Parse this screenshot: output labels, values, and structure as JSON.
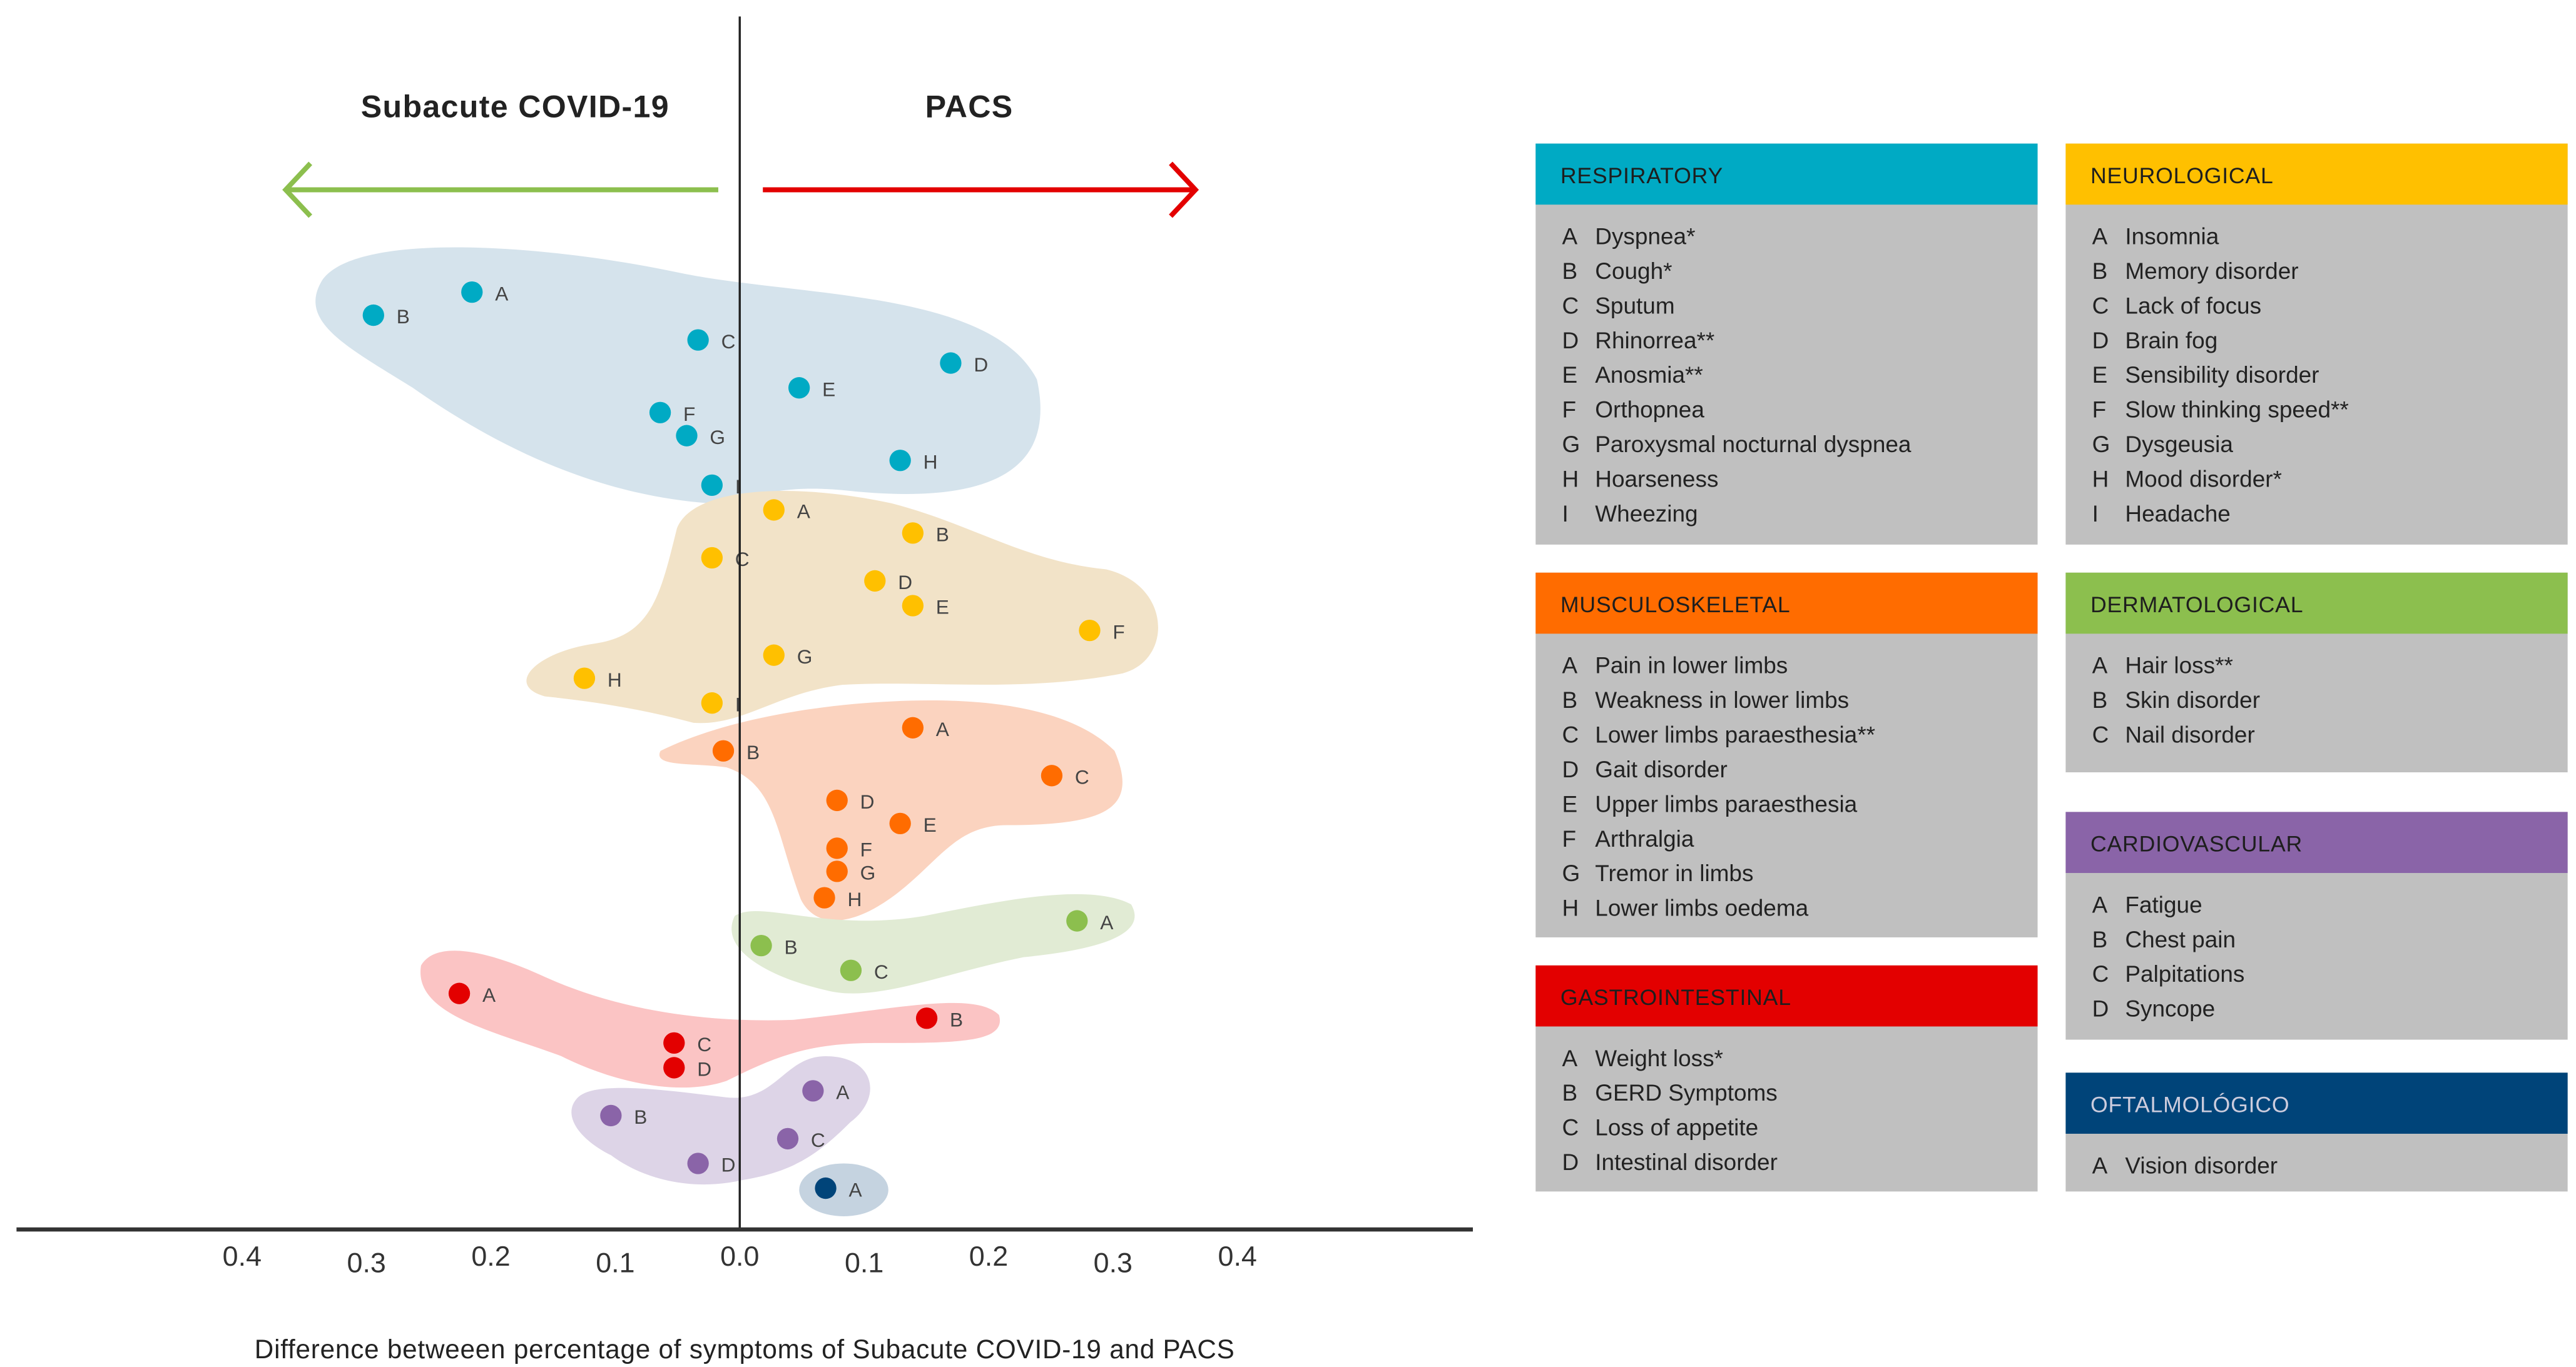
{
  "chart_data": {
    "type": "scatter",
    "title_left": "Subacute COVID-19",
    "title_right": "PACS",
    "xlabel": "Difference betweeen percentage of symptoms of Subacute COVID-19 and PACS",
    "xlim": [
      -0.4,
      0.4
    ],
    "tick_labels": [
      "0.4",
      "0.3",
      "0.2",
      "0.1",
      "0.0",
      "0.1",
      "0.2",
      "0.3",
      "0.4"
    ],
    "tick_values": [
      -0.4,
      -0.3,
      -0.2,
      -0.1,
      0,
      0.1,
      0.2,
      0.3,
      0.4
    ],
    "groups": [
      {
        "name": "RESPIRATORY",
        "color": "#00aac4",
        "fill": "#d5e3ec",
        "points": [
          {
            "label": "A",
            "name": "Dyspnea*",
            "x": -0.212
          },
          {
            "label": "B",
            "name": "Cough*",
            "x": -0.29
          },
          {
            "label": "C",
            "name": "Sputum",
            "x": -0.033
          },
          {
            "label": "D",
            "name": "Rhinorrea**",
            "x": 0.167
          },
          {
            "label": "E",
            "name": "Anosmia**",
            "x": 0.047
          },
          {
            "label": "F",
            "name": "Orthopnea",
            "x": -0.063
          },
          {
            "label": "G",
            "name": "Paroxysmal nocturnal dyspnea",
            "x": -0.042
          },
          {
            "label": "H",
            "name": "Hoarseness",
            "x": 0.127
          },
          {
            "label": "I",
            "name": "Wheezing",
            "x": -0.022
          }
        ]
      },
      {
        "name": "NEUROLOGICAL",
        "color": "#ffc000",
        "fill": "#f2e3c8",
        "points": [
          {
            "label": "A",
            "name": "Insomnia",
            "x": 0.027
          },
          {
            "label": "B",
            "name": "Memory disorder",
            "x": 0.137
          },
          {
            "label": "C",
            "name": "Lack of focus",
            "x": -0.022
          },
          {
            "label": "D",
            "name": "Brain fog",
            "x": 0.107
          },
          {
            "label": "E",
            "name": "Sensibility disorder",
            "x": 0.137
          },
          {
            "label": "F",
            "name": "Slow thinking speed**",
            "x": 0.277
          },
          {
            "label": "G",
            "name": "Dysgeusia",
            "x": 0.027
          },
          {
            "label": "H",
            "name": "Mood disorder*",
            "x": -0.123
          },
          {
            "label": "I",
            "name": "Headache",
            "x": -0.022
          }
        ]
      },
      {
        "name": "MUSCULOSKELETAL",
        "color": "#ff6c00",
        "fill": "#fbd3bf",
        "points": [
          {
            "label": "A",
            "name": "Pain in lower limbs",
            "x": 0.137
          },
          {
            "label": "B",
            "name": "Weakness in lower limbs",
            "x": -0.013
          },
          {
            "label": "C",
            "name": "Lower limbs paraesthesia**",
            "x": 0.247
          },
          {
            "label": "D",
            "name": "Gait disorder",
            "x": 0.077
          },
          {
            "label": "E",
            "name": "Upper limbs paraesthesia",
            "x": 0.127
          },
          {
            "label": "F",
            "name": "Arthralgia",
            "x": 0.077
          },
          {
            "label": "G",
            "name": "Tremor in limbs",
            "x": 0.077
          },
          {
            "label": "H",
            "name": "Lower limbs oedema",
            "x": 0.067
          }
        ]
      },
      {
        "name": "DERMATOLOGICAL",
        "color": "#8cbf4e",
        "fill": "#e1ebd4",
        "points": [
          {
            "label": "A",
            "name": "Hair loss**",
            "x": 0.267
          },
          {
            "label": "B",
            "name": "Skin disorder",
            "x": 0.017
          },
          {
            "label": "C",
            "name": "Nail disorder",
            "x": 0.088
          }
        ]
      },
      {
        "name": "GASTROINTESTINAL",
        "color": "#e30000",
        "fill": "#fbc4c4",
        "points": [
          {
            "label": "A",
            "name": "Weight loss*",
            "x": -0.222
          },
          {
            "label": "B",
            "name": "GERD Symptoms",
            "x": 0.148
          },
          {
            "label": "C",
            "name": "Loss of appetite",
            "x": -0.052
          },
          {
            "label": "D",
            "name": "Intestinal disorder",
            "x": -0.052
          }
        ]
      },
      {
        "name": "CARDIOVASCULAR",
        "color": "#8a64a8",
        "fill": "#ddd4e7",
        "points": [
          {
            "label": "A",
            "name": "Fatigue",
            "x": 0.058
          },
          {
            "label": "B",
            "name": "Chest pain",
            "x": -0.102
          },
          {
            "label": "C",
            "name": "Palpitations",
            "x": 0.038
          },
          {
            "label": "D",
            "name": "Syncope",
            "x": -0.033
          }
        ]
      },
      {
        "name": "OFTALMOLÓGICO",
        "color": "#004479",
        "fill": "#c5d3e0",
        "points": [
          {
            "label": "A",
            "name": "Vision disorder",
            "x": 0.068
          }
        ]
      }
    ],
    "arrow_left_color": "#8cbf4e",
    "arrow_right_color": "#e30000"
  }
}
